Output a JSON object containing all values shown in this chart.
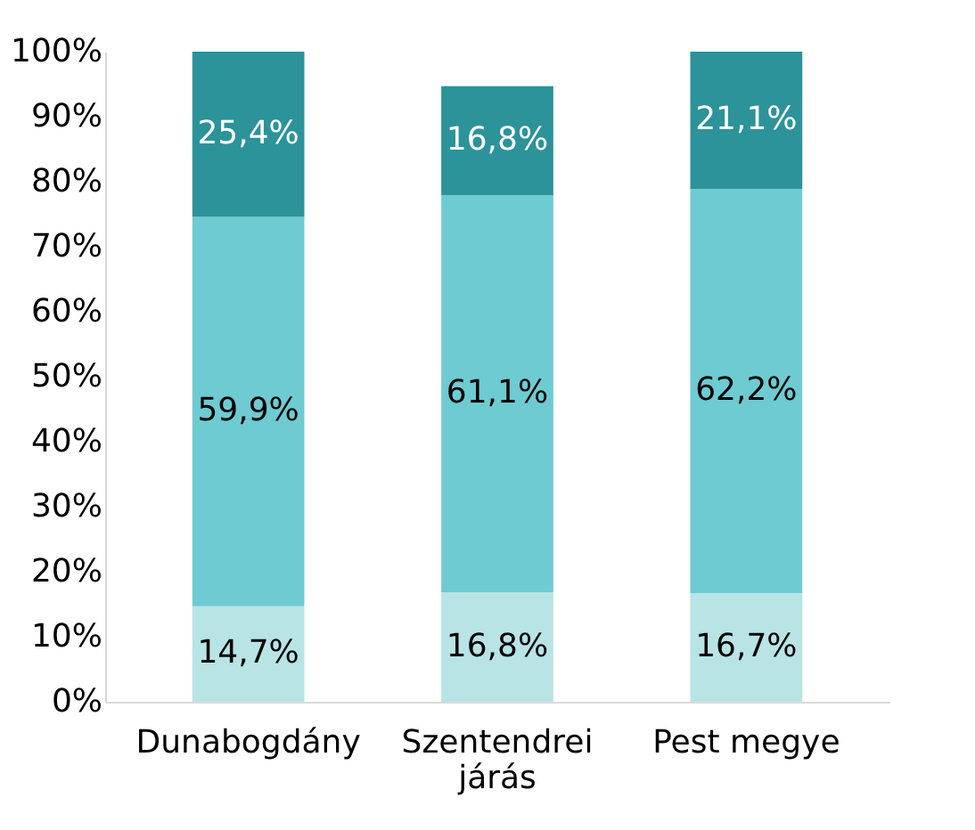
{
  "chart_data": {
    "type": "bar",
    "stacked": true,
    "categories": [
      "Dunabogdány",
      "Szentendrei járás",
      "Pest megye"
    ],
    "series": [
      {
        "color": "#b8e4e6",
        "values": [
          14.7,
          16.8,
          16.7
        ],
        "value_labels": [
          "14,7%",
          "16,8%",
          "16,7%"
        ]
      },
      {
        "color": "#6ecbd2",
        "values": [
          59.9,
          61.1,
          62.2
        ],
        "value_labels": [
          "59,9%",
          "61,1%",
          "62,2%"
        ]
      },
      {
        "color": "#2b9399",
        "values": [
          25.4,
          16.8,
          21.1
        ],
        "value_labels": [
          "25,4%",
          "16,8%",
          "21,1%"
        ]
      }
    ],
    "ylim": [
      0,
      100
    ],
    "yticks": [
      {
        "value": 0,
        "label": "0%"
      },
      {
        "value": 10,
        "label": "10%"
      },
      {
        "value": 20,
        "label": "20%"
      },
      {
        "value": 30,
        "label": "30%"
      },
      {
        "value": 40,
        "label": "40%"
      },
      {
        "value": 50,
        "label": "50%"
      },
      {
        "value": 60,
        "label": "60%"
      },
      {
        "value": 70,
        "label": "70%"
      },
      {
        "value": 80,
        "label": "80%"
      },
      {
        "value": 90,
        "label": "90%"
      },
      {
        "value": 100,
        "label": "100%"
      }
    ],
    "grid": false,
    "legend": false
  }
}
